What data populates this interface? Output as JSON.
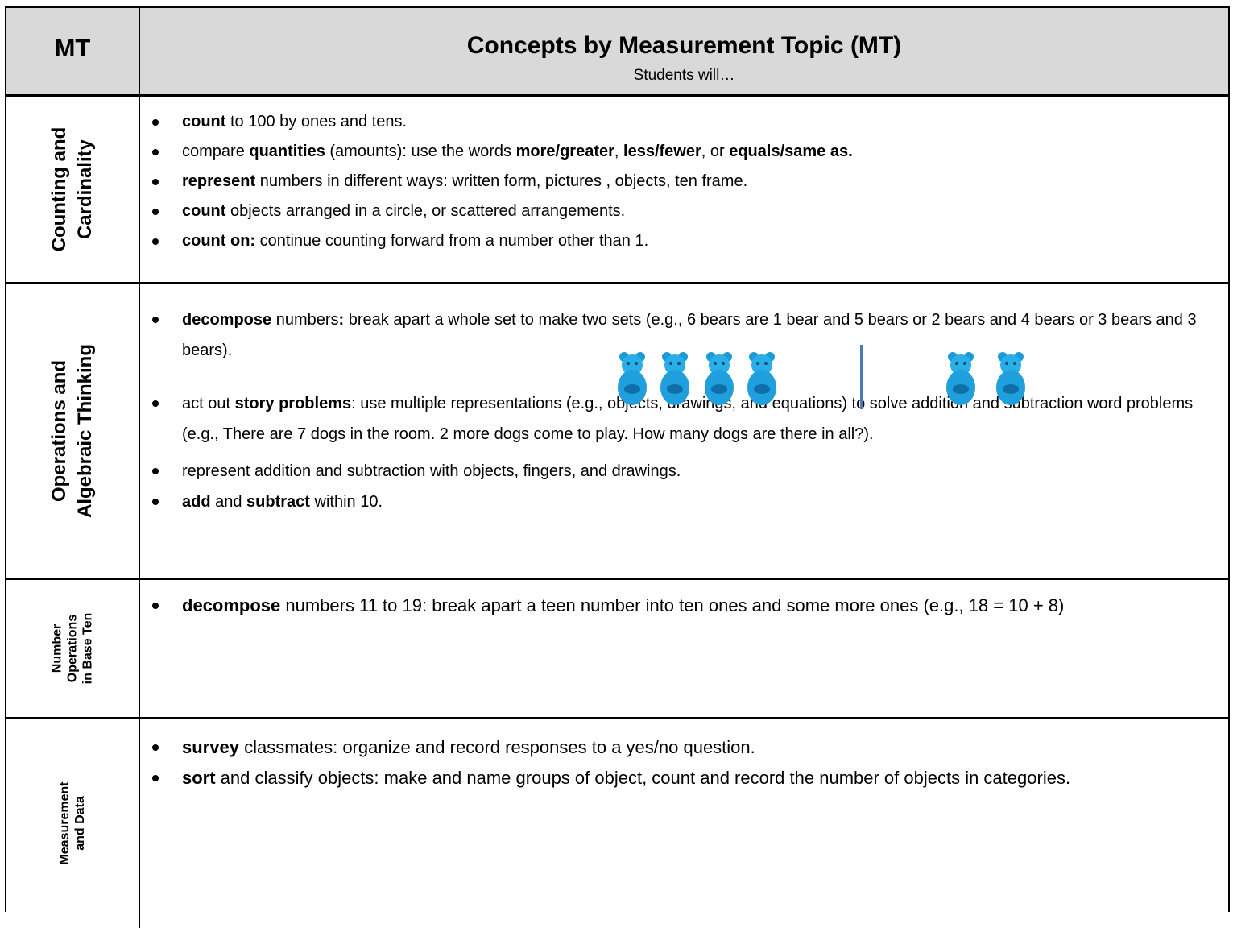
{
  "header": {
    "mt": "MT",
    "title": "Concepts by Measurement Topic (MT)",
    "subtitle": "Students will…"
  },
  "rows": [
    {
      "topic": [
        "Counting and",
        "Cardinality"
      ],
      "bullets": [
        [
          {
            "text": "count",
            "bold": true
          },
          {
            "text": " to 100 by ones and tens.",
            "bold": false
          }
        ],
        [
          {
            "text": "compare ",
            "bold": false
          },
          {
            "text": "quantities",
            "bold": true
          },
          {
            "text": " (amounts): use the words ",
            "bold": false
          },
          {
            "text": "more/greater",
            "bold": true
          },
          {
            "text": ", ",
            "bold": false
          },
          {
            "text": "less/fewer",
            "bold": true
          },
          {
            "text": ", or ",
            "bold": false
          },
          {
            "text": "equals/same as.",
            "bold": true
          }
        ],
        [
          {
            "text": "represent",
            "bold": true
          },
          {
            "text": " numbers in different ways: written form,  pictures , objects, ten frame.",
            "bold": false
          }
        ],
        [
          {
            "text": "count",
            "bold": true
          },
          {
            "text": " objects arranged in a circle, or scattered arrangements.",
            "bold": false
          }
        ],
        [
          {
            "text": "count on:",
            "bold": true
          },
          {
            "text": " continue counting forward from a number other than 1.",
            "bold": false
          }
        ]
      ]
    },
    {
      "topic": [
        "Operations and",
        "Algebraic Thinking"
      ],
      "bullets": [
        [
          {
            "text": "decompose",
            "bold": true
          },
          {
            "text": " numbers",
            "bold": false
          },
          {
            "text": ":",
            "bold": true
          },
          {
            "text": " break apart a whole set to make two sets (e.g., 6 bears are 1 bear and 5 bears or 2 bears and 4 bears or 3 bears and 3 bears).",
            "bold": false
          }
        ],
        [
          {
            "text": "act out ",
            "bold": false
          },
          {
            "text": "story problems",
            "bold": true
          },
          {
            "text": ":  use multiple representations (e.g., objects, drawings, and equations) to solve addition and subtraction word problems (e.g., There are 7 dogs in the room. 2 more dogs come to play. How many dogs are there in all?).",
            "bold": false
          }
        ],
        [
          {
            "text": "represent addition and subtraction with objects, fingers, and drawings.",
            "bold": false
          }
        ],
        [
          {
            "text": "add",
            "bold": true
          },
          {
            "text": " and ",
            "bold": false
          },
          {
            "text": "subtract",
            "bold": true
          },
          {
            "text": " within 10.",
            "bold": false
          }
        ]
      ]
    },
    {
      "topic": [
        "Number",
        "Operations",
        "in Base Ten"
      ],
      "bullets": [
        [
          {
            "text": "decompose",
            "bold": true
          },
          {
            "text": " numbers 11 to 19: break apart a teen number into ten ones and some more ones (e.g., 18 = 10 + 8)",
            "bold": false
          }
        ]
      ]
    },
    {
      "topic": [
        "Measurement",
        "and Data"
      ],
      "bullets": [
        [
          {
            "text": "survey",
            "bold": true
          },
          {
            "text": " classmates: organize and record responses to a yes/no question.",
            "bold": false
          }
        ],
        [
          {
            "text": "sort",
            "bold": true
          },
          {
            "text": " and classify objects: make and name groups of object, count and record the number of objects in categories.",
            "bold": false
          }
        ]
      ]
    }
  ]
}
